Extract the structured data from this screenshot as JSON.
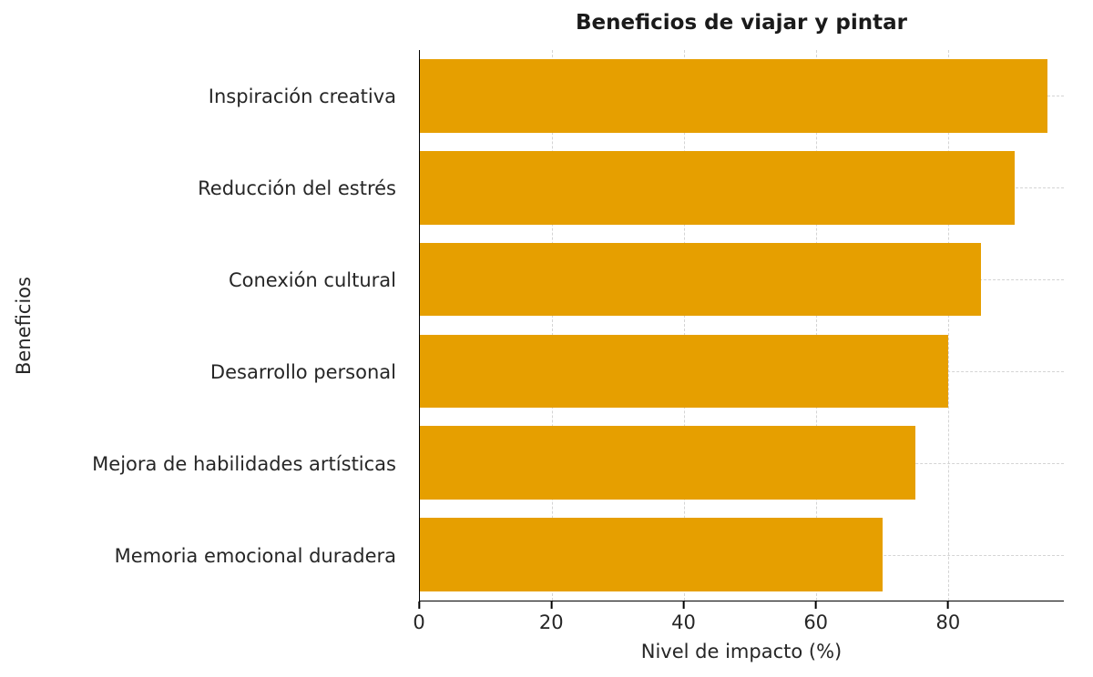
{
  "chart_data": {
    "type": "bar",
    "orientation": "horizontal",
    "title": "Beneficios de viajar y pintar",
    "xlabel": "Nivel de impacto (%)",
    "ylabel": "Beneficios",
    "categories": [
      "Inspiración creativa",
      "Reducción del estrés",
      "Conexión cultural",
      "Desarrollo personal",
      "Mejora de habilidades artísticas",
      "Memoria emocional duradera"
    ],
    "values": [
      95,
      90,
      85,
      80,
      75,
      70
    ],
    "xlim": [
      0,
      97.5
    ],
    "xticks": [
      0,
      20,
      40,
      60,
      80
    ],
    "bar_color": "#E69F00",
    "grid": "dashed",
    "legend": "none",
    "background": "#ffffff"
  }
}
